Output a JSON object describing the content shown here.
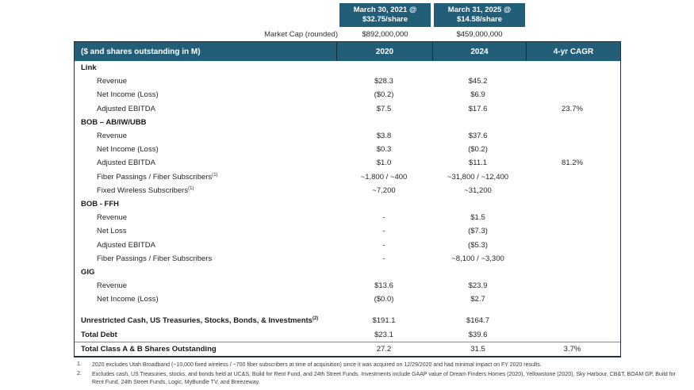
{
  "colors": {
    "header_teal": "#235e78",
    "header_separator": "#142f3f",
    "table_border": "#25323c",
    "total_divider": "#8a8a8a"
  },
  "top_header": {
    "share_box_2021": {
      "line1": "March 30, 2021 @",
      "line2": "$32.75/share"
    },
    "share_box_2025": {
      "line1": "March 31, 2025 @",
      "line2": "$14.58/share"
    },
    "market_cap_label": "Market Cap (rounded)",
    "market_cap_2021": "$892,000,000",
    "market_cap_2025": "$459,000,000"
  },
  "table": {
    "headers": {
      "label": "($ and shares outstanding in M)",
      "col_2020": "2020",
      "col_2024": "2024",
      "col_cagr": "4-yr CAGR"
    },
    "rows": [
      {
        "type": "section",
        "label": "Link",
        "sup": "",
        "v2020": "",
        "v2024": "",
        "cagr": ""
      },
      {
        "type": "item",
        "label": "Revenue",
        "sup": "",
        "v2020": "$28.3",
        "v2024": "$45.2",
        "cagr": ""
      },
      {
        "type": "item",
        "label": "Net Income (Loss)",
        "sup": "",
        "v2020": "($0.2)",
        "v2024": "$6.9",
        "cagr": ""
      },
      {
        "type": "item",
        "label": "Adjusted EBITDA",
        "sup": "",
        "v2020": "$7.5",
        "v2024": "$17.6",
        "cagr": "23.7%"
      },
      {
        "type": "section",
        "label": "BOB – AB/IW/UBB",
        "sup": "",
        "v2020": "",
        "v2024": "",
        "cagr": ""
      },
      {
        "type": "item",
        "label": "Revenue",
        "sup": "",
        "v2020": "$3.8",
        "v2024": "$37.6",
        "cagr": ""
      },
      {
        "type": "item",
        "label": "Net Income (Loss)",
        "sup": "",
        "v2020": "$0.3",
        "v2024": "($0.2)",
        "cagr": ""
      },
      {
        "type": "item",
        "label": "Adjusted EBITDA",
        "sup": "",
        "v2020": "$1.0",
        "v2024": "$11.1",
        "cagr": "81.2%"
      },
      {
        "type": "item",
        "label": "Fiber Passings / Fiber Subscribers",
        "sup": "(1)",
        "v2020": "~1,800 / ~400",
        "v2024": "~31,800 / ~12,400",
        "cagr": ""
      },
      {
        "type": "item",
        "label": "Fixed Wireless Subscribers",
        "sup": "(1)",
        "v2020": "~7,200",
        "v2024": "~31,200",
        "cagr": ""
      },
      {
        "type": "section",
        "label": "BOB - FFH",
        "sup": "",
        "v2020": "",
        "v2024": "",
        "cagr": ""
      },
      {
        "type": "item",
        "label": "Revenue",
        "sup": "",
        "v2020": "-",
        "v2024": "$1.5",
        "cagr": ""
      },
      {
        "type": "item",
        "label": "Net Loss",
        "sup": "",
        "v2020": "-",
        "v2024": "($7.3)",
        "cagr": ""
      },
      {
        "type": "item",
        "label": "Adjusted EBITDA",
        "sup": "",
        "v2020": "-",
        "v2024": "($5.3)",
        "cagr": ""
      },
      {
        "type": "item",
        "label": "Fiber Passings / Fiber Subscribers",
        "sup": "",
        "v2020": "-",
        "v2024": "~8,100 / ~3,300",
        "cagr": ""
      },
      {
        "type": "section",
        "label": "GIG",
        "sup": "",
        "v2020": "",
        "v2024": "",
        "cagr": ""
      },
      {
        "type": "item",
        "label": "Revenue",
        "sup": "",
        "v2020": "$13.6",
        "v2024": "$23.9",
        "cagr": ""
      },
      {
        "type": "item",
        "label": "Net Income (Loss)",
        "sup": "",
        "v2020": "($0.0)",
        "v2024": "$2.7",
        "cagr": ""
      },
      {
        "type": "total",
        "label": "Unrestricted Cash, US Treasuries, Stocks, Bonds, & Investments",
        "sup": "(2)",
        "v2020": "$191.1",
        "v2024": "$164.7",
        "cagr": ""
      },
      {
        "type": "total",
        "label": "Total Debt",
        "sup": "",
        "v2020": "$23.1",
        "v2024": "$39.6",
        "cagr": ""
      },
      {
        "type": "total-topline",
        "label": "Total Class A & B Shares Outstanding",
        "sup": "",
        "v2020": "27.2",
        "v2024": "31.5",
        "cagr": "3.7%"
      }
    ]
  },
  "footnotes": [
    {
      "num": "1.",
      "text": "2020 excludes Utah Broadband (~10,000 fixed wireless / ~700 fiber subscribers at time of acquisition) since it was acquired on 12/29/2020 and had minimal impact on FY 2020 results."
    },
    {
      "num": "2.",
      "text": "Excludes cash, US Treasuries, stocks, and bonds held at UC&S, Build for Rent Fund, and 24th Street Funds.  Investments include GAAP value of Dream Finders Homes (2020), Yellowstone (2020), Sky Harbour, CB&T, BOAM GP, Build for Rent Fund, 24th Street Funds, Logic, MyBundle TV, and Breezeway."
    }
  ]
}
